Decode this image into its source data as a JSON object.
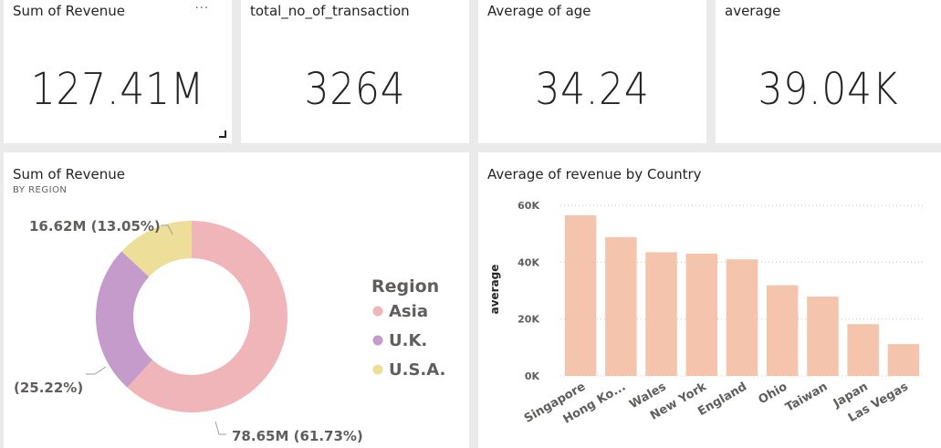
{
  "cards": [
    {
      "title": "Sum of Revenue",
      "value": "127.41M"
    },
    {
      "title": "total_no_of_transaction",
      "value": "3264"
    },
    {
      "title": "Average of age",
      "value": "34.24"
    },
    {
      "title": "average",
      "value": "39.04K"
    }
  ],
  "card_menu_glyph": "···",
  "donut": {
    "title": "Sum of Revenue",
    "subtitle": "BY REGION",
    "legend_title": "Region",
    "label_usa": "16.62M (13.05%)",
    "label_uk": "(25.22%)",
    "label_asia": "78.65M (61.73%)"
  },
  "bar": {
    "title": "Average of revenue by Country",
    "ylabel": "average",
    "yticks": [
      "0K",
      "20K",
      "40K",
      "60K"
    ]
  },
  "chart_data": [
    {
      "type": "pie",
      "title": "Sum of Revenue",
      "subtitle": "BY REGION",
      "legend_title": "Region",
      "legend_position": "right",
      "categories": [
        "Asia",
        "U.K.",
        "U.S.A."
      ],
      "values": [
        78.65,
        32.14,
        16.62
      ],
      "percentages": [
        61.73,
        25.22,
        13.05
      ],
      "colors": [
        "#EFB5B9",
        "#C59BCB",
        "#EDDE99"
      ]
    },
    {
      "type": "bar",
      "title": "Average of revenue by Country",
      "xlabel": "",
      "ylabel": "average",
      "categories": [
        "Singapore",
        "Hong Ko...",
        "Wales",
        "New York",
        "England",
        "Ohio",
        "Taiwan",
        "Japan",
        "Las Vegas"
      ],
      "values": [
        56500,
        48800,
        43500,
        43000,
        41000,
        31900,
        27900,
        18200,
        11200
      ],
      "ylim": [
        0,
        60000
      ],
      "yticks": [
        "0K",
        "20K",
        "40K",
        "60K"
      ],
      "grid": true,
      "color": "#F5C4AC"
    }
  ]
}
